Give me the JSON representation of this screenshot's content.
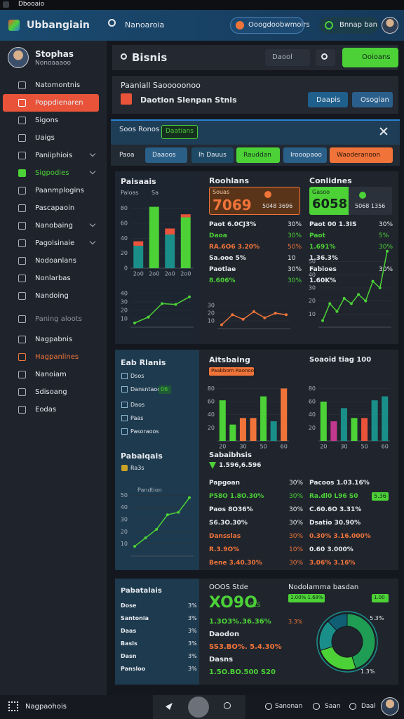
{
  "status_bar": {
    "title": "Dbooaio"
  },
  "header": {
    "app_name": "Ubbangiain",
    "search": "Nanoaroia",
    "pill": "Ooogdoobwmoirs",
    "account": "Bnnap ban"
  },
  "sidebar": {
    "user_name": "Stophas",
    "user_role": "Nonoaaaoo",
    "items": [
      "Natomontnis",
      "Poppdienaren",
      "Sigons",
      "Uaigs",
      "Paniiphiois",
      "Sigpodies",
      "Paanmplogins",
      "Pascapaoin",
      "Nanobaing",
      "Pagolsinaie",
      "Nodoanlans",
      "Nonlarbas",
      "Nandoing",
      "Paning aloots",
      "Nagpabnis",
      "Hagpanlines",
      "Nanoiam",
      "Sdisoang",
      "Eodas"
    ]
  },
  "toolbar": {
    "title": "Bisnis",
    "dropdown": "Daool",
    "button": "Ooioans"
  },
  "summary": {
    "title": "Paaniall Saooooonoo",
    "subtitle": "Daotion Slenpan Stnis",
    "buttons": [
      "Daapis",
      "Osogian"
    ]
  },
  "filters": {
    "title": "Soos Ronos",
    "tag": "Daatians",
    "label": "Paoa",
    "buttons": [
      "Daaoos",
      "Ih Dauus",
      "Rauddan",
      "Irooopaoo",
      "Waoderanoon"
    ]
  },
  "panel_a": {
    "col1_title": "Paisaais",
    "col1_legend": [
      "Paloas",
      "Sa"
    ],
    "col2_title": "Roohlans",
    "kpi_2": {
      "label": "Souas",
      "value": "7069",
      "sub": "5048 3696"
    },
    "rows_2": [
      {
        "text": "Paot 6.0CJ3%",
        "value": "30%",
        "color": "#e6e9ee"
      },
      {
        "text": "Daoa",
        "value": "30%",
        "color": "#4cd137"
      },
      {
        "text": "RA.6O6 3.20%",
        "value": "50%",
        "color": "#f0743a"
      },
      {
        "text": "Sa.ooe 5%",
        "value": "10",
        "color": "#e6e9ee"
      },
      {
        "text": "Paotlae",
        "value": "30%",
        "color": "#e6e9ee"
      },
      {
        "text": "8.606%",
        "value": "30%",
        "color": "#4cd137"
      }
    ],
    "col3_title": "Conlidnes",
    "kpi_3": {
      "label": "Gasoo",
      "value": "6058",
      "sub": "5068 1356"
    },
    "rows_3": [
      {
        "text": "Paot 00 1.3IS",
        "value": "30%",
        "color": "#e6e9ee"
      },
      {
        "text": "Paot",
        "value": "5%",
        "color": "#4cd137"
      },
      {
        "text": "1.691%",
        "value": "30%",
        "color": "#4cd137"
      },
      {
        "text": "1.36.3%",
        "color": "#e6e9ee"
      },
      {
        "text": "Fabioes",
        "value": "30%",
        "color": "#e6e9ee"
      },
      {
        "text": "1.60K%",
        "color": "#e6e9ee"
      }
    ]
  },
  "panel_b": {
    "col1_title": "Eab Rlanis",
    "col1_items": [
      "Dsos",
      "Dansntaoon",
      "Daos",
      "Paas",
      "Pasoraoos"
    ],
    "col1_tag": "06",
    "col1_title2": "Pabaiqais",
    "col1_sub": "Ra3s",
    "col2_title": "Aitsbaing",
    "col2_tag": "Paabbom Raonoos",
    "col2_sub_title": "Sabaibhsis",
    "col2_sub_value": "1.596,6.596",
    "rows_2": [
      {
        "text": "Papgoan",
        "value": "30%",
        "color": "#e6e9ee"
      },
      {
        "text": "P58O 1.8O.30%",
        "value": "30%",
        "color": "#4cd137"
      },
      {
        "text": "Paos 8O36%",
        "value": "30%",
        "color": "#e6e9ee"
      },
      {
        "text": "S6.3O.30%",
        "value": "30%",
        "color": "#e6e9ee"
      },
      {
        "text": "Dansslas",
        "value": "30%",
        "color": "#f0743a"
      },
      {
        "text": "R.3.9O%",
        "value": "10%",
        "color": "#f0743a"
      },
      {
        "text": "Bene 3.40.30%",
        "value": "30%",
        "color": "#f0743a"
      }
    ],
    "col3_title": "Soaoid tiag 100",
    "col3_tag": "5.36",
    "rows_3": [
      {
        "text": "Pacoos 1.03.16%",
        "color": "#e6e9ee"
      },
      {
        "text": "Ra.dl0 L96 S0",
        "color": "#4cd137"
      },
      {
        "text": "C.60.6O 3.31%",
        "color": "#e6e9ee"
      },
      {
        "text": "Dsatio 30.90%",
        "color": "#e6e9ee"
      },
      {
        "text": "0.30% 3.16.000%",
        "color": "#f0743a"
      },
      {
        "text": "0.60 3.000%",
        "color": "#e6e9ee"
      },
      {
        "text": "3.06% 3.16%",
        "color": "#f0743a"
      }
    ]
  },
  "panel_c": {
    "col1_title": "Pabatalais",
    "rows_1": [
      {
        "text": "Dose",
        "value": "3%",
        "color": "#e6e9ee"
      },
      {
        "text": "Santonia",
        "value": "3%",
        "color": "#e6e9ee"
      },
      {
        "text": "Daas",
        "value": "3%",
        "color": "#e6e9ee"
      },
      {
        "text": "Basis",
        "value": "3%",
        "color": "#e6e9ee"
      },
      {
        "text": "Dasn",
        "value": "3%",
        "color": "#e6e9ee"
      },
      {
        "text": "Pansloo",
        "value": "3%",
        "color": "#e6e9ee"
      }
    ],
    "col2_title": "OOOS Stde",
    "col2_value": "XO9O",
    "col2_unit": "S1S",
    "rows_2": [
      {
        "text": "1.3O3%.36.36%",
        "color": "#4cd137"
      },
      {
        "text": "Daodon",
        "color": "#e6e9ee"
      },
      {
        "text": "SS3.BO%. 5.4.30%",
        "color": "#f0743a"
      },
      {
        "text": "Dasns",
        "color": "#e6e9ee"
      },
      {
        "text": "1.5O.BO.500 S20",
        "color": "#4cd137"
      }
    ],
    "col3_title": "Nodolamma basdan",
    "col3_tags": [
      "1.00% 1.68%",
      "1.00"
    ],
    "donut_labels": [
      "3.3%",
      "5.3%",
      "1.3%"
    ]
  },
  "bottom_bar": {
    "title": "Nagpaohois",
    "links": [
      "Sanonan",
      "Saan",
      "Daal"
    ]
  },
  "chart_data": [
    {
      "type": "bar",
      "stacked": true,
      "categories": [
        "2o0",
        "2o0",
        "2o0",
        "2o0"
      ],
      "ylim": [
        0,
        90
      ],
      "yticks": [
        0,
        20,
        40,
        60,
        80
      ],
      "series": [
        {
          "color": "#1a8f8a",
          "values": [
            30,
            0,
            45,
            0
          ]
        },
        {
          "color": "#4cd137",
          "values": [
            0,
            82,
            0,
            68
          ]
        },
        {
          "color": "#e8533a",
          "values": [
            6,
            0,
            8,
            4
          ]
        }
      ]
    },
    {
      "type": "line",
      "values": [
        5,
        12,
        28,
        27,
        36
      ],
      "color": "#4cd137",
      "ylim": [
        0,
        45
      ],
      "yticks": [
        10,
        20,
        30,
        40
      ]
    },
    {
      "type": "line",
      "values": [
        5,
        18,
        12,
        22,
        14,
        20,
        18
      ],
      "color": "#f0743a",
      "ylim": [
        0,
        40
      ],
      "yticks": [
        10,
        20,
        30
      ]
    },
    {
      "type": "line",
      "values": [
        5,
        18,
        12,
        22,
        18,
        25,
        20,
        35,
        30,
        58
      ],
      "color": "#4cd137",
      "ylim": [
        0,
        60
      ],
      "yticks": [
        10,
        20,
        30,
        40,
        50
      ]
    },
    {
      "type": "line",
      "values": [
        8,
        15,
        22,
        34,
        36,
        48
      ],
      "color": "#4cd137",
      "ylim": [
        0,
        60
      ],
      "yticks": [
        10,
        20,
        30,
        40,
        50
      ],
      "annotation": "Pandtion"
    },
    {
      "type": "bar",
      "categories": [
        "20",
        null,
        "30",
        null,
        "50",
        null,
        "60"
      ],
      "values": [
        62,
        25,
        35,
        35,
        68,
        30,
        80
      ],
      "colors": [
        "#4cd137",
        "#4cd137",
        "#f0743a",
        "#f0743a",
        "#4cd137",
        "#1a8f8a",
        "#f0743a"
      ],
      "ylim": [
        0,
        90
      ],
      "yticks": [
        20,
        40,
        60,
        80
      ]
    },
    {
      "type": "bar",
      "categories": [
        "20",
        null,
        "30",
        null,
        "50",
        null,
        "60"
      ],
      "values": [
        60,
        30,
        50,
        35,
        35,
        62,
        68
      ],
      "colors": [
        "#4cd137",
        "#c2388f",
        "#1a8f8a",
        "#4cd137",
        "#e8533a",
        "#1a8f8a",
        "#1a8f8a"
      ],
      "ylim": [
        0,
        90
      ],
      "yticks": [
        20,
        40,
        60,
        80
      ]
    },
    {
      "type": "pie",
      "values": [
        45,
        25,
        18,
        12
      ],
      "colors": [
        "#1f9d55",
        "#4cd137",
        "#1a8f8a",
        "#0f5e73"
      ]
    }
  ]
}
